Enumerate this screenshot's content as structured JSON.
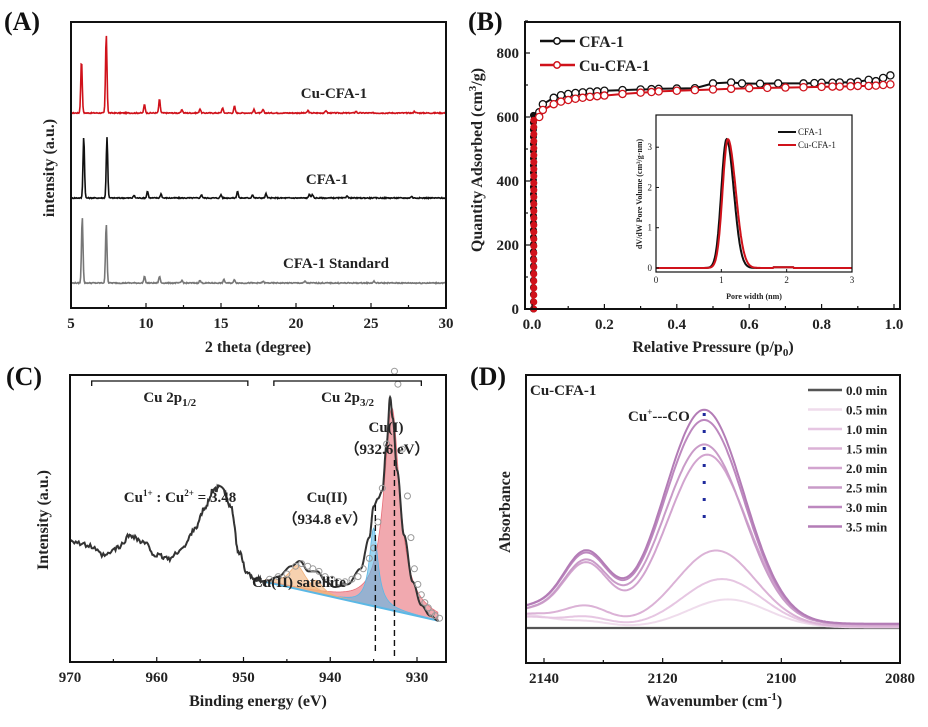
{
  "chart_data": [
    {
      "id": "A",
      "panel_label": "(A)",
      "type": "line",
      "title": "",
      "xlabel": "2 theta (degree)",
      "ylabel": "intensity (a.u.)",
      "xlim": [
        5,
        30
      ],
      "x_ticks": [
        "5",
        "10",
        "15",
        "20",
        "25",
        "30"
      ],
      "grid": false,
      "series": [
        {
          "name": "Cu-CFA-1",
          "color": "#d0121b",
          "offset": 2.0,
          "peaks": [
            [
              5.7,
              0.62
            ],
            [
              7.35,
              0.92
            ],
            [
              9.9,
              0.1
            ],
            [
              10.9,
              0.16
            ],
            [
              12.4,
              0.04
            ],
            [
              13.6,
              0.05
            ],
            [
              15.1,
              0.06
            ],
            [
              15.9,
              0.08
            ],
            [
              17.2,
              0.04
            ],
            [
              17.8,
              0.04
            ],
            [
              20.8,
              0.03
            ],
            [
              22.0,
              0.03
            ],
            [
              24.0,
              0.02
            ],
            [
              27.9,
              0.02
            ]
          ]
        },
        {
          "name": "CFA-1",
          "color": "#111111",
          "offset": 1.0,
          "peaks": [
            [
              5.85,
              0.72
            ],
            [
              7.4,
              0.72
            ],
            [
              9.2,
              0.03
            ],
            [
              10.1,
              0.08
            ],
            [
              11.0,
              0.05
            ],
            [
              13.7,
              0.04
            ],
            [
              15.0,
              0.04
            ],
            [
              16.1,
              0.08
            ],
            [
              17.1,
              0.04
            ],
            [
              18.0,
              0.05
            ],
            [
              20.9,
              0.05
            ],
            [
              21.1,
              0.04
            ],
            [
              23.4,
              0.03
            ],
            [
              27.7,
              0.02
            ]
          ]
        },
        {
          "name": "CFA-1 Standard",
          "color": "#777777",
          "offset": 0.0,
          "peaks": [
            [
              5.75,
              0.78
            ],
            [
              7.35,
              0.7
            ],
            [
              9.9,
              0.08
            ],
            [
              10.9,
              0.08
            ],
            [
              12.4,
              0.03
            ],
            [
              13.6,
              0.03
            ],
            [
              15.2,
              0.04
            ],
            [
              15.9,
              0.04
            ],
            [
              17.8,
              0.02
            ],
            [
              20.6,
              0.02
            ],
            [
              25.2,
              0.02
            ]
          ]
        }
      ]
    },
    {
      "id": "B",
      "panel_label": "(B)",
      "type": "scatter",
      "title": "",
      "xlabel": "Relative Pressure (p/p",
      "xlabel_sub": "0",
      "xlabel_end": ")",
      "ylabel": "Quantity Adsorbed (cm",
      "ylabel_sup": "3",
      "ylabel_end": "/g)",
      "xlim": [
        0,
        1.0
      ],
      "ylim": [
        0,
        900
      ],
      "x_ticks": [
        "0.0",
        "0.2",
        "0.4",
        "0.6",
        "0.8",
        "1.0"
      ],
      "y_ticks": [
        "0",
        "200",
        "400",
        "600",
        "800"
      ],
      "legend_position": "top-left",
      "series": [
        {
          "name": "CFA-1",
          "color": "#111111",
          "x": [
            0.002,
            0.004,
            0.006,
            0.008,
            0.01,
            0.02,
            0.03,
            0.06,
            0.08,
            0.1,
            0.12,
            0.14,
            0.16,
            0.18,
            0.2,
            0.25,
            0.3,
            0.33,
            0.35,
            0.4,
            0.45,
            0.5,
            0.55,
            0.58,
            0.63,
            0.68,
            0.75,
            0.78,
            0.8,
            0.83,
            0.85,
            0.88,
            0.9,
            0.93,
            0.95,
            0.97,
            0.99
          ],
          "y": [
            20,
            300,
            520,
            590,
            605,
            615,
            640,
            660,
            668,
            672,
            675,
            677,
            679,
            680,
            682,
            684,
            686,
            687,
            688,
            689,
            690,
            705,
            708,
            705,
            704,
            705,
            705,
            706,
            707,
            707,
            708,
            708,
            710,
            716,
            712,
            722,
            730
          ]
        },
        {
          "name": "Cu-CFA-1",
          "color": "#d0121b",
          "x": [
            0.002,
            0.004,
            0.006,
            0.008,
            0.01,
            0.02,
            0.03,
            0.06,
            0.08,
            0.1,
            0.12,
            0.14,
            0.16,
            0.18,
            0.2,
            0.25,
            0.3,
            0.33,
            0.35,
            0.4,
            0.45,
            0.5,
            0.55,
            0.6,
            0.65,
            0.7,
            0.75,
            0.8,
            0.83,
            0.85,
            0.88,
            0.9,
            0.93,
            0.95,
            0.97,
            0.99
          ],
          "y": [
            10,
            200,
            420,
            560,
            590,
            600,
            622,
            640,
            648,
            653,
            657,
            660,
            663,
            665,
            667,
            672,
            676,
            678,
            680,
            682,
            684,
            686,
            688,
            690,
            691,
            692,
            693,
            694,
            695,
            695,
            696,
            697,
            697,
            698,
            700,
            702
          ]
        }
      ],
      "inset": {
        "type": "line",
        "xlabel": "Pore width (nm)",
        "ylabel": "dV/dW Pore Volume (cm³/g·nm)",
        "xlim": [
          0,
          3
        ],
        "ylim": [
          -0.1,
          3.8
        ],
        "x_ticks": [
          "0",
          "1",
          "2",
          "3"
        ],
        "y_ticks": [
          "0",
          "1",
          "2",
          "3"
        ],
        "legend_position": "top-right",
        "series": [
          {
            "name": "CFA-1",
            "color": "#111111",
            "peak_center": 1.08,
            "peak_height": 3.2,
            "sigma_left": 0.08,
            "sigma_right": 0.11
          },
          {
            "name": "Cu-CFA-1",
            "color": "#d0121b",
            "peak_center": 1.1,
            "peak_height": 3.2,
            "sigma_left": 0.08,
            "sigma_right": 0.12
          }
        ]
      }
    },
    {
      "id": "C",
      "panel_label": "(C)",
      "type": "line",
      "title": "",
      "xlabel": "Binding energy (eV)",
      "ylabel": "Intensity (a.u.)",
      "xlim": [
        970,
        926
      ],
      "x_ticks": [
        "970",
        "960",
        "950",
        "940",
        "930"
      ],
      "region_labels": [
        {
          "text": "Cu 2p",
          "sub": "1/2",
          "from": 967.5,
          "to": 949.5
        },
        {
          "text": "Cu 2p",
          "sub": "3/2",
          "from": 946.5,
          "to": 929.5
        }
      ],
      "annotations": {
        "ratio": {
          "a": "Cu",
          "a_sup": "1+",
          "sep": " : ",
          "b": "Cu",
          "b_sup": "2+",
          "eq": " = 3.48"
        },
        "cu1": {
          "name": "Cu(I)",
          "energy": "（932.6 eV）",
          "position_ev": 932.6
        },
        "cu2": {
          "name": "Cu(II)",
          "energy": "（934.8 eV）",
          "position_ev": 934.8
        },
        "satellite": "Cu(II) satellite"
      },
      "spectrum": {
        "x": [
          970,
          968,
          966,
          964.5,
          963,
          961.5,
          960,
          958.5,
          957,
          955.5,
          954.5,
          953.5,
          952.5,
          951.5,
          950.5,
          949.5,
          948.5,
          947.5,
          946,
          944.5,
          943.5,
          942.5,
          941.5,
          940.5,
          939.5,
          938,
          936.5,
          935.5,
          935,
          934.5,
          934,
          933.5,
          933.1,
          932.8,
          932.3,
          931.5,
          930.5,
          929.5,
          928.5,
          927.5
        ],
        "y": [
          0.43,
          0.41,
          0.37,
          0.4,
          0.45,
          0.42,
          0.37,
          0.36,
          0.4,
          0.48,
          0.55,
          0.62,
          0.64,
          0.56,
          0.38,
          0.3,
          0.28,
          0.27,
          0.29,
          0.33,
          0.35,
          0.31,
          0.31,
          0.27,
          0.25,
          0.26,
          0.32,
          0.44,
          0.56,
          0.59,
          0.62,
          0.8,
          0.98,
          0.9,
          0.7,
          0.45,
          0.27,
          0.18,
          0.14,
          0.12
        ]
      },
      "fits": [
        {
          "name": "Cu(I)",
          "color": "#e8707a",
          "center": 932.9,
          "height": 0.78,
          "width": 1.1
        },
        {
          "name": "Cu(II)",
          "color": "#5bb8e6",
          "center": 935.0,
          "height": 0.3,
          "width": 0.6
        },
        {
          "name": "Cu(II) satellite 1",
          "color": "#f2b27a",
          "center": 943.8,
          "height": 0.09,
          "width": 1.2
        },
        {
          "name": "Cu(II) satellite 2",
          "color": "#f2b27a",
          "center": 941.6,
          "height": 0.05,
          "width": 0.9
        }
      ]
    },
    {
      "id": "D",
      "panel_label": "(D)",
      "type": "line",
      "title": "Cu-CFA-1",
      "xlabel": "Wavenumber (cm",
      "xlabel_sup": "-1",
      "xlabel_end": ")",
      "ylabel": "Absorbance",
      "xlim": [
        2143,
        2080
      ],
      "x_ticks": [
        "2140",
        "2120",
        "2100",
        "2080"
      ],
      "annotation": {
        "text": "Cu",
        "sup": "+",
        "rest": "---CO",
        "position_cm": 2113
      },
      "legend_position": "top-right",
      "series": [
        {
          "name": "0.0 min",
          "color": "#555555",
          "peak": 0.0,
          "shoulder": 0.0,
          "base_left": 0.0,
          "center": 2110
        },
        {
          "name": "0.5 min",
          "color": "#efdcec",
          "peak": 0.14,
          "shoulder": 0.03,
          "base_left": 0.06,
          "center": 2109
        },
        {
          "name": "1.0 min",
          "color": "#e6c6e2",
          "peak": 0.24,
          "shoulder": 0.05,
          "base_left": 0.05,
          "center": 2110
        },
        {
          "name": "1.5 min",
          "color": "#dbb2d6",
          "peak": 0.38,
          "shoulder": 0.1,
          "base_left": 0.06,
          "center": 2111
        },
        {
          "name": "2.0 min",
          "color": "#d2a4cf",
          "peak": 0.85,
          "shoulder": 0.3,
          "base_left": 0.07,
          "center": 2112.5
        },
        {
          "name": "2.5 min",
          "color": "#c99bc8",
          "peak": 0.9,
          "shoulder": 0.31,
          "base_left": 0.07,
          "center": 2113
        },
        {
          "name": "3.0 min",
          "color": "#bd88bf",
          "peak": 1.02,
          "shoulder": 0.34,
          "base_left": 0.08,
          "center": 2113
        },
        {
          "name": "3.5 min",
          "color": "#b37cb6",
          "peak": 1.07,
          "shoulder": 0.35,
          "base_left": 0.08,
          "center": 2113
        }
      ]
    }
  ]
}
